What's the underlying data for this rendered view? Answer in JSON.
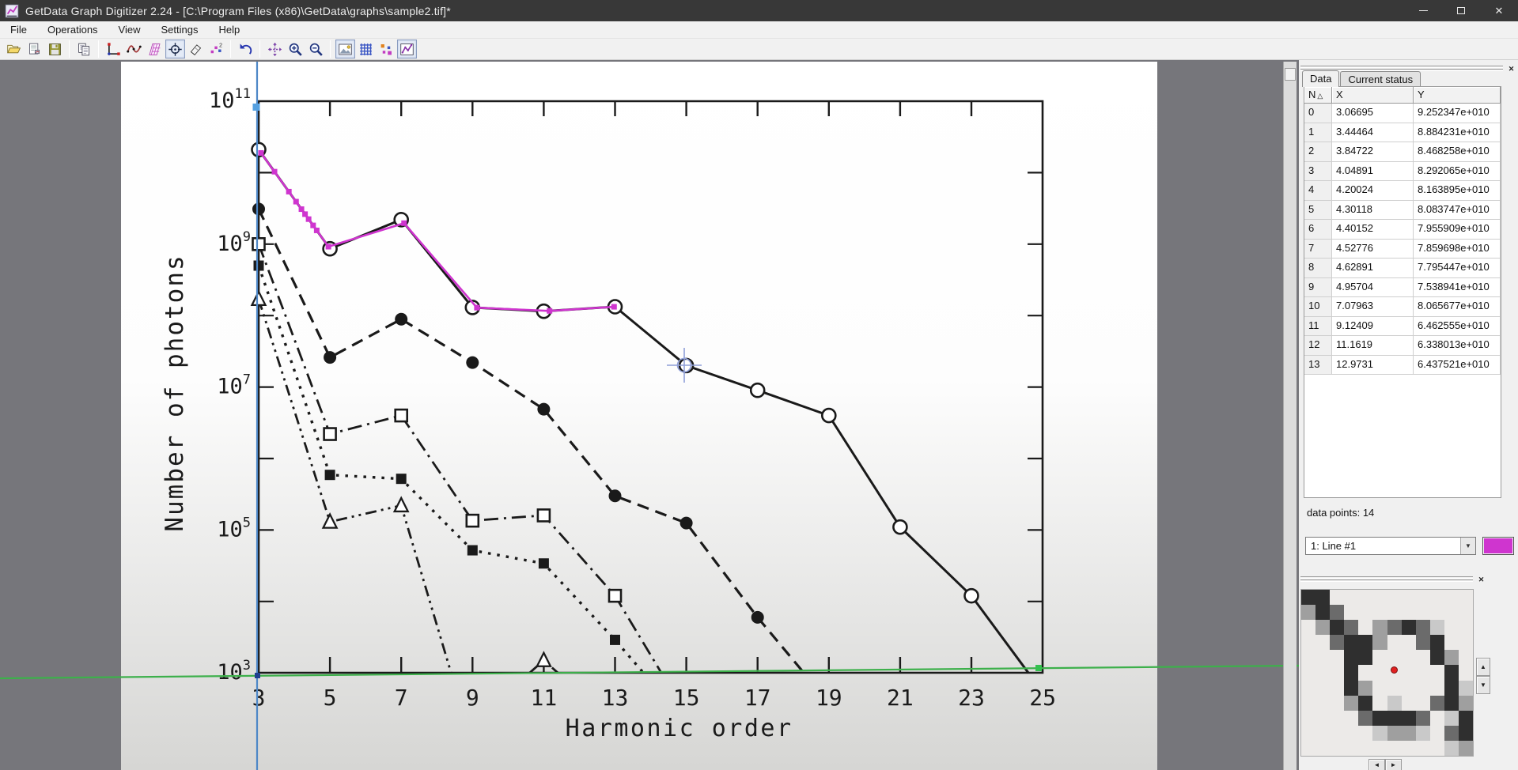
{
  "window": {
    "title": "GetData Graph Digitizer 2.24 - [C:\\Program Files (x86)\\GetData\\graphs\\sample2.tif]*",
    "menu": [
      "File",
      "Operations",
      "View",
      "Settings",
      "Help"
    ],
    "controls": [
      "minimize",
      "maximize",
      "close"
    ],
    "toolbar": [
      {
        "name": "open-project-button",
        "icon": "open-folder"
      },
      {
        "name": "open-image-button",
        "icon": "open-image"
      },
      {
        "name": "save-button",
        "icon": "save"
      },
      {
        "sep": true
      },
      {
        "name": "copy-button",
        "icon": "copy"
      },
      {
        "sep": true
      },
      {
        "name": "set-scale-button",
        "icon": "axes"
      },
      {
        "name": "reorder-points-button",
        "icon": "curve"
      },
      {
        "name": "digitize-area-button",
        "icon": "area-grid"
      },
      {
        "name": "set-points-button",
        "icon": "capture-points",
        "pressed": true
      },
      {
        "name": "erase-points-button",
        "icon": "eraser"
      },
      {
        "name": "move-points-button",
        "icon": "points-move"
      },
      {
        "sep": true
      },
      {
        "name": "undo-button",
        "icon": "undo"
      },
      {
        "sep": true
      },
      {
        "name": "pan-button",
        "icon": "pan"
      },
      {
        "name": "zoom-in-button",
        "icon": "zoom-in"
      },
      {
        "name": "zoom-out-button",
        "icon": "zoom-out"
      },
      {
        "sep": true
      },
      {
        "name": "toggle-image-button",
        "icon": "show-image",
        "pressed": true
      },
      {
        "name": "toggle-grid-button",
        "icon": "show-grid"
      },
      {
        "name": "toggle-points-button",
        "icon": "show-points"
      },
      {
        "name": "toggle-lines-button",
        "icon": "show-lines",
        "pressed": true
      }
    ]
  },
  "panel": {
    "tabs": [
      {
        "label": "Data",
        "active": true
      },
      {
        "label": "Current status",
        "active": false
      }
    ],
    "table": {
      "headers": [
        "N",
        "X",
        "Y"
      ],
      "sort_indicator": "△",
      "rows": [
        [
          "0",
          "3.06695",
          "9.252347e+010"
        ],
        [
          "1",
          "3.44464",
          "8.884231e+010"
        ],
        [
          "2",
          "3.84722",
          "8.468258e+010"
        ],
        [
          "3",
          "4.04891",
          "8.292065e+010"
        ],
        [
          "4",
          "4.20024",
          "8.163895e+010"
        ],
        [
          "5",
          "4.30118",
          "8.083747e+010"
        ],
        [
          "6",
          "4.40152",
          "7.955909e+010"
        ],
        [
          "7",
          "4.52776",
          "7.859698e+010"
        ],
        [
          "8",
          "4.62891",
          "7.795447e+010"
        ],
        [
          "9",
          "4.95704",
          "7.538941e+010"
        ],
        [
          "10",
          "7.07963",
          "8.065677e+010"
        ],
        [
          "11",
          "9.12409",
          "6.462555e+010"
        ],
        [
          "12",
          "11.1619",
          "6.338013e+010"
        ],
        [
          "13",
          "12.9731",
          "6.437521e+010"
        ]
      ]
    },
    "points_count_label": "data points: 14",
    "line_select": {
      "value": "1: Line #1"
    },
    "line_color": "#cf35cf"
  },
  "chart_data": {
    "type": "line",
    "title": "",
    "xlabel": "Harmonic order",
    "ylabel": "Number of photons",
    "x_ticks": [
      3,
      5,
      7,
      9,
      11,
      13,
      15,
      17,
      19,
      21,
      23,
      25
    ],
    "xlim": [
      3,
      25
    ],
    "y_scale": "log",
    "ylim": [
      1000,
      100000000000
    ],
    "y_tick_exponents": [
      3,
      5,
      7,
      9,
      11
    ],
    "grid": false,
    "legend": "none",
    "series": [
      {
        "name": "open circles - solid line",
        "marker": "circle-open",
        "line_style": "solid",
        "points": [
          [
            3,
            21000000000.0
          ],
          [
            5,
            860000000.0
          ],
          [
            7,
            2200000000.0
          ],
          [
            9,
            130000000.0
          ],
          [
            11,
            115000000.0
          ],
          [
            13,
            133000000.0
          ],
          [
            15,
            20000000.0
          ],
          [
            17,
            9000000.0
          ],
          [
            19,
            4000000.0
          ],
          [
            21,
            110000.0
          ],
          [
            23,
            12000.0
          ],
          [
            24.6,
            1000.0
          ]
        ]
      },
      {
        "name": "filled circles - dashed line",
        "marker": "circle-filled",
        "line_style": "dashed",
        "points": [
          [
            3,
            3100000000.0
          ],
          [
            5,
            26000000.0
          ],
          [
            7,
            89000000.0
          ],
          [
            9,
            22000000.0
          ],
          [
            11,
            4900000.0
          ],
          [
            13,
            300000.0
          ],
          [
            15,
            125000.0
          ],
          [
            17,
            6000.0
          ],
          [
            18.3,
            1000.0
          ]
        ]
      },
      {
        "name": "open squares - dash-dot line",
        "marker": "square-open",
        "line_style": "dashdot",
        "points": [
          [
            3,
            1000000000.0
          ],
          [
            5,
            2200000.0
          ],
          [
            7,
            4000000.0
          ],
          [
            9,
            135000.0
          ],
          [
            11,
            160000.0
          ],
          [
            13,
            12000.0
          ],
          [
            14.3,
            1000.0
          ]
        ]
      },
      {
        "name": "filled squares - dotted line",
        "marker": "square-filled",
        "line_style": "dotted",
        "points": [
          [
            3,
            500000000.0
          ],
          [
            5,
            590000.0
          ],
          [
            7,
            520000.0
          ],
          [
            9,
            52000.0
          ],
          [
            11,
            34000.0
          ],
          [
            13,
            2900.0
          ],
          [
            13.8,
            1000.0
          ]
        ]
      },
      {
        "name": "open triangles - dash-dot-dot line",
        "marker": "triangle-open",
        "line_style": "dashdotdot",
        "points": [
          [
            3,
            170000000.0
          ],
          [
            5,
            130000.0
          ],
          [
            7,
            220000.0
          ],
          [
            8.4,
            1000.0
          ],
          [
            10.6,
            1000.0
          ],
          [
            11,
            1500.0
          ],
          [
            11.4,
            1000.0
          ]
        ]
      }
    ],
    "digitized_series": "1: Line #1",
    "digitized_x": [
      3.06695,
      3.44464,
      3.84722,
      4.04891,
      4.20024,
      4.30118,
      4.40152,
      4.52776,
      4.62891,
      4.95704,
      7.07963,
      9.12409,
      11.1619,
      12.9731
    ]
  },
  "overlay": {
    "x_axis_line_color": "#3db04b",
    "y_axis_line_color": "#4d87c7",
    "digitized_color": "#cf35cf",
    "cursor_color": "#8f9fd8"
  },
  "magnifier": {
    "pixels": [
      "44..........",
      "243.........",
      ".243.23431..",
      "..3442..34..",
      "...44....42.",
      "...4......4.",
      "...42.....41",
      "...24.1..342",
      "....34443.14",
      ".....1221.34",
      "..........12"
    ],
    "cursor_dot_color": "#e02020"
  }
}
